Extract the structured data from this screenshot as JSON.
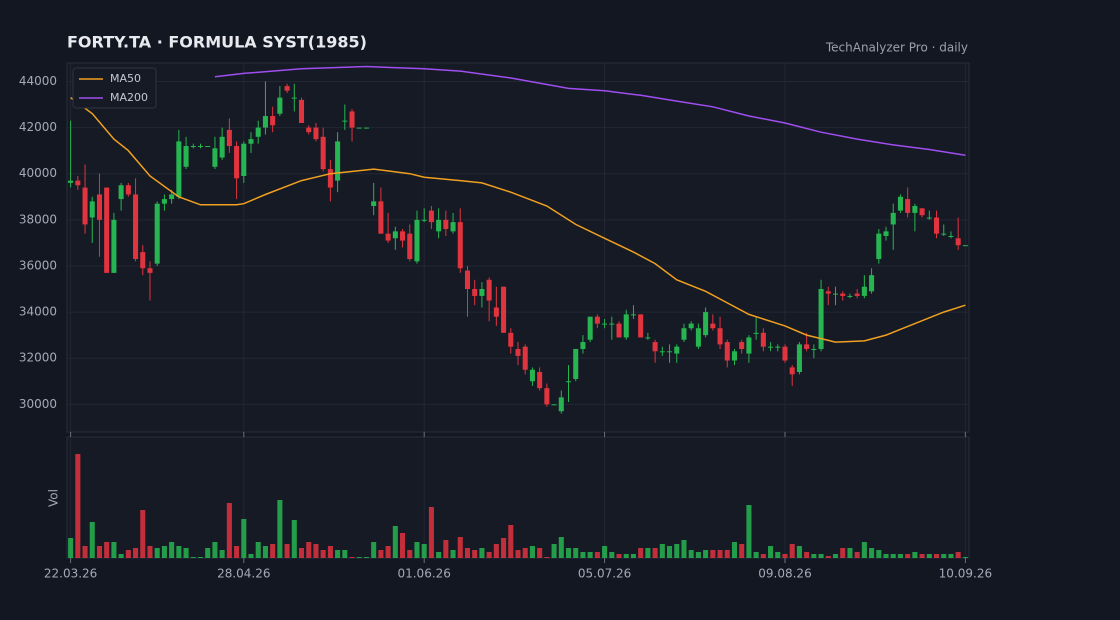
{
  "chart_data": {
    "type": "candlestick",
    "title": "FORTY.TA  ·  FORMULA SYST(1985)",
    "source": "TechAnalyzer Pro · daily",
    "volume_label": "Vol",
    "up_color": "#26b550",
    "down_color": "#e0343f",
    "grid": true,
    "legend": "upper left",
    "xlim": [
      -0.5,
      124.5
    ],
    "xticks": [
      {
        "value": 0,
        "label": "22.03.26"
      },
      {
        "value": 24,
        "label": "28.04.26"
      },
      {
        "value": 49,
        "label": "01.06.26"
      },
      {
        "value": 74,
        "label": "05.07.26"
      },
      {
        "value": 99,
        "label": "09.08.26"
      },
      {
        "value": 124,
        "label": "10.09.26"
      }
    ],
    "ylim": [
      28800,
      44800
    ],
    "yticks": [
      30000,
      32000,
      34000,
      36000,
      38000,
      40000,
      42000,
      44000
    ],
    "volume_ylim": [
      0,
      121
    ],
    "open": [
      39600,
      39700,
      39400,
      38100,
      39100,
      39400,
      35700,
      38900,
      39500,
      39100,
      36600,
      35900,
      36100,
      38700,
      38900,
      39000,
      40300,
      41200,
      41200,
      41200,
      40300,
      40700,
      41900,
      41200,
      39900,
      41300,
      41600,
      42000,
      42500,
      42600,
      43800,
      43300,
      43200,
      42000,
      42000,
      41600,
      40200,
      39700,
      42300,
      42700,
      42000,
      42000,
      38600,
      38800,
      37400,
      37200,
      37500,
      37400,
      36200,
      38000,
      38400,
      37500,
      38000,
      37500,
      37900,
      35800,
      35000,
      34700,
      35400,
      34200,
      35100,
      33100,
      32400,
      32500,
      31000,
      31400,
      30700,
      30000,
      29700,
      31000,
      31100,
      32400,
      32800,
      33800,
      33500,
      33500,
      33500,
      32900,
      33900,
      33900,
      32900,
      32700,
      32300,
      32300,
      32200,
      32800,
      33300,
      32500,
      33000,
      33500,
      33300,
      32700,
      31900,
      32700,
      32200,
      33100,
      33100,
      32500,
      32500,
      32500,
      31600,
      31400,
      32600,
      32400,
      32400,
      34900,
      34800,
      34800,
      34700,
      34800,
      34700,
      34900,
      36300,
      37300,
      37800,
      38400,
      38900,
      38300,
      38500,
      38100,
      38100,
      37400,
      37300,
      37200,
      36900
    ],
    "high": [
      42300,
      39900,
      40400,
      39000,
      40000,
      39400,
      38300,
      39600,
      39600,
      39800,
      36900,
      36200,
      38800,
      39100,
      39300,
      41900,
      41600,
      41300,
      41300,
      41200,
      41600,
      42000,
      42400,
      41400,
      41400,
      41800,
      42300,
      44000,
      42900,
      43800,
      43900,
      43900,
      43300,
      42100,
      42200,
      42000,
      40600,
      41800,
      43000,
      42800,
      42000,
      42000,
      39600,
      39400,
      38300,
      37700,
      37600,
      37800,
      38400,
      38500,
      38600,
      38500,
      38400,
      38300,
      38500,
      36000,
      35400,
      35300,
      35500,
      35100,
      35100,
      33300,
      32700,
      32600,
      31600,
      31600,
      30900,
      30000,
      30600,
      31700,
      32400,
      33000,
      33800,
      33900,
      33700,
      33800,
      33600,
      34100,
      34300,
      33900,
      33100,
      32800,
      32500,
      32600,
      32600,
      33500,
      33600,
      33500,
      34200,
      33900,
      33800,
      32800,
      32400,
      32800,
      33000,
      33800,
      33300,
      32700,
      32600,
      32600,
      31700,
      32700,
      33100,
      32600,
      35400,
      35100,
      35100,
      34900,
      34800,
      35000,
      35600,
      35900,
      37600,
      37700,
      38700,
      39100,
      39400,
      38700,
      38500,
      38400,
      38400,
      37800,
      37500,
      38100,
      36900
    ],
    "low": [
      39400,
      39300,
      37400,
      37000,
      36400,
      35700,
      35700,
      38400,
      39000,
      36200,
      35600,
      34500,
      36000,
      38400,
      38700,
      38900,
      40200,
      41100,
      41100,
      41200,
      40200,
      40600,
      40900,
      38900,
      39600,
      40900,
      41300,
      41700,
      41800,
      42500,
      43500,
      42700,
      42200,
      41700,
      41400,
      40100,
      38800,
      39200,
      41900,
      41400,
      42000,
      42000,
      38200,
      37400,
      37000,
      36700,
      36800,
      36200,
      36100,
      37900,
      37600,
      37200,
      37300,
      37400,
      35700,
      33800,
      34300,
      34200,
      33600,
      33400,
      33100,
      32200,
      31700,
      31300,
      30800,
      30600,
      29900,
      30000,
      29600,
      30100,
      31000,
      32200,
      32700,
      33300,
      33300,
      32800,
      32900,
      32800,
      33700,
      32900,
      32800,
      31800,
      32100,
      31800,
      31800,
      32700,
      33200,
      32400,
      32900,
      33200,
      32400,
      31600,
      31700,
      32200,
      31800,
      32800,
      32300,
      32300,
      32300,
      31800,
      30800,
      31300,
      32300,
      32000,
      32300,
      34300,
      34300,
      34500,
      34600,
      34600,
      34600,
      34800,
      36100,
      37100,
      36700,
      38300,
      38100,
      37500,
      38100,
      38000,
      37200,
      37300,
      37200,
      36700,
      36900
    ],
    "close": [
      39700,
      39500,
      37800,
      38800,
      38000,
      35700,
      38000,
      39500,
      39100,
      36300,
      35900,
      35700,
      38700,
      38900,
      39100,
      41400,
      41200,
      41200,
      41200,
      41200,
      41100,
      41600,
      41200,
      39800,
      41300,
      41500,
      42000,
      42500,
      42100,
      43300,
      43600,
      43300,
      42200,
      41800,
      41500,
      40200,
      39400,
      41400,
      42300,
      42000,
      42000,
      42000,
      38800,
      37400,
      37100,
      37500,
      37100,
      36300,
      38000,
      38000,
      37900,
      38000,
      37600,
      37900,
      35900,
      35000,
      34700,
      35000,
      34500,
      33800,
      33100,
      32500,
      32100,
      31500,
      31500,
      30700,
      30000,
      30000,
      30300,
      31000,
      32400,
      32700,
      33800,
      33500,
      33500,
      33500,
      32900,
      33900,
      33900,
      32900,
      32900,
      32300,
      32300,
      32300,
      32500,
      33300,
      33500,
      33300,
      34000,
      33300,
      32600,
      31900,
      32300,
      32400,
      32900,
      33100,
      32500,
      32500,
      32500,
      31900,
      31300,
      32600,
      32400,
      32400,
      35000,
      34800,
      34800,
      34700,
      34700,
      34700,
      35100,
      35600,
      37400,
      37500,
      38300,
      39000,
      38300,
      38600,
      38200,
      38100,
      37400,
      37400,
      37300,
      36900,
      36900
    ],
    "volume": [
      20,
      104,
      12,
      36,
      12,
      16,
      16,
      4,
      8,
      10,
      48,
      12,
      10,
      12,
      16,
      12,
      10,
      1,
      1,
      10,
      16,
      8,
      55,
      12,
      39,
      4,
      16,
      12,
      14,
      58,
      14,
      38,
      10,
      16,
      14,
      8,
      12,
      8,
      8,
      1,
      1,
      1,
      16,
      8,
      12,
      32,
      25,
      8,
      16,
      14,
      51,
      6,
      18,
      8,
      21,
      10,
      8,
      10,
      6,
      14,
      20,
      33,
      8,
      10,
      12,
      10,
      1,
      14,
      21,
      10,
      10,
      6,
      6,
      6,
      12,
      6,
      4,
      4,
      4,
      10,
      10,
      10,
      14,
      12,
      14,
      18,
      8,
      6,
      8,
      8,
      8,
      8,
      16,
      14,
      53,
      6,
      4,
      12,
      6,
      4,
      14,
      12,
      6,
      4,
      4,
      2,
      4,
      10,
      10,
      6,
      16,
      10,
      8,
      4,
      4,
      4,
      4,
      6,
      4,
      4,
      4,
      4,
      4,
      6,
      1
    ],
    "series": [
      {
        "name": "MA50",
        "color": "#f0a020",
        "x": [
          0,
          3,
          6,
          8,
          11,
          15,
          18,
          23,
          24,
          27,
          32,
          36,
          42,
          47,
          49,
          54,
          57,
          61,
          66,
          70,
          74,
          78,
          81,
          84,
          88,
          91,
          94,
          99,
          102,
          106,
          110,
          113,
          117,
          121,
          124
        ],
        "values": [
          43300,
          42600,
          41500,
          41000,
          39900,
          39000,
          38650,
          38650,
          38700,
          39100,
          39700,
          40000,
          40200,
          40000,
          39850,
          39700,
          39600,
          39200,
          38600,
          37800,
          37200,
          36600,
          36100,
          35400,
          34900,
          34400,
          33900,
          33400,
          33000,
          32700,
          32750,
          33000,
          33500,
          34000,
          34300
        ]
      },
      {
        "name": "MA200",
        "color": "#a04ef0",
        "x": [
          20,
          24,
          32,
          41,
          49,
          54,
          61,
          69,
          74,
          79,
          84,
          89,
          94,
          99,
          104,
          109,
          114,
          119,
          124
        ],
        "values": [
          44200,
          44350,
          44550,
          44650,
          44550,
          44450,
          44150,
          43700,
          43600,
          43400,
          43150,
          42900,
          42500,
          42200,
          41800,
          41500,
          41250,
          41050,
          40800
        ]
      }
    ]
  }
}
